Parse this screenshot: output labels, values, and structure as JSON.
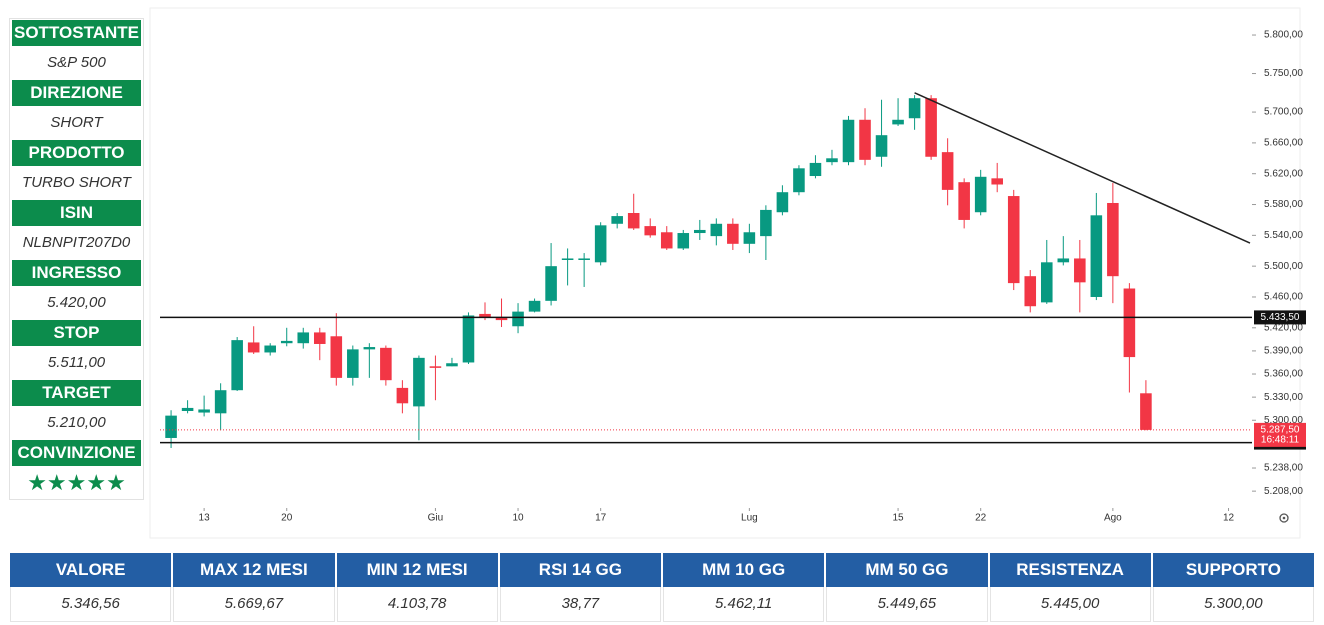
{
  "sidebar": [
    {
      "label": "SOTTOSTANTE",
      "value": "S&P 500"
    },
    {
      "label": "DIREZIONE",
      "value": "SHORT"
    },
    {
      "label": "PRODOTTO",
      "value": "TURBO SHORT"
    },
    {
      "label": "ISIN",
      "value": "NLBNPIT207D0"
    },
    {
      "label": "INGRESSO",
      "value": "5.420,00"
    },
    {
      "label": "STOP",
      "value": "5.511,00"
    },
    {
      "label": "TARGET",
      "value": "5.210,00"
    },
    {
      "label": "CONVINZIONE",
      "value": "★★★★★"
    }
  ],
  "chart_data": {
    "type": "candlestick",
    "up_color": "#089981",
    "down_color": "#f23645",
    "open": [
      5277,
      5312,
      5310,
      5309,
      5339,
      5401,
      5388,
      5400,
      5400,
      5414,
      5409,
      5355,
      5392,
      5394,
      5342,
      5318,
      5370,
      5370,
      5375,
      5438,
      5434,
      5422,
      5441,
      5455,
      5508,
      5508,
      5505,
      5555,
      5569,
      5552,
      5544,
      5523,
      5543,
      5539,
      5555,
      5529,
      5539,
      5570,
      5596,
      5617,
      5635,
      5635,
      5690,
      5642,
      5684,
      5692,
      5718,
      5648,
      5609,
      5570,
      5614,
      5591,
      5487,
      5453,
      5505,
      5510,
      5460,
      5582,
      5471,
      5335
    ],
    "high": [
      5313,
      5326,
      5332,
      5348,
      5408,
      5422,
      5400,
      5420,
      5420,
      5420,
      5439,
      5397,
      5400,
      5397,
      5352,
      5384,
      5384,
      5381,
      5440,
      5453,
      5458,
      5452,
      5458,
      5530,
      5523,
      5517,
      5557,
      5569,
      5594,
      5562,
      5552,
      5547,
      5560,
      5562,
      5562,
      5555,
      5579,
      5605,
      5631,
      5644,
      5651,
      5695,
      5705,
      5716,
      5718,
      5722,
      5722,
      5666,
      5614,
      5625,
      5634,
      5599,
      5495,
      5534,
      5539,
      5534,
      5595,
      5608,
      5478,
      5352
    ],
    "low": [
      5264,
      5309,
      5305,
      5287,
      5338,
      5386,
      5384,
      5396,
      5393,
      5378,
      5345,
      5345,
      5355,
      5345,
      5309,
      5274,
      5326,
      5370,
      5373,
      5430,
      5421,
      5413,
      5440,
      5449,
      5475,
      5473,
      5501,
      5549,
      5547,
      5537,
      5521,
      5521,
      5534,
      5527,
      5521,
      5517,
      5508,
      5566,
      5592,
      5614,
      5631,
      5631,
      5631,
      5629,
      5682,
      5677,
      5638,
      5579,
      5549,
      5566,
      5596,
      5469,
      5440,
      5451,
      5501,
      5440,
      5456,
      5452,
      5336,
      5287
    ],
    "close": [
      5306,
      5316,
      5314,
      5339,
      5404,
      5388,
      5397,
      5403,
      5414,
      5399,
      5355,
      5392,
      5395,
      5352,
      5322,
      5381,
      5368,
      5374,
      5436,
      5434,
      5430,
      5441,
      5455,
      5500,
      5510,
      5510,
      5553,
      5565,
      5549,
      5540,
      5523,
      5543,
      5547,
      5555,
      5529,
      5544,
      5573,
      5596,
      5627,
      5634,
      5640,
      5690,
      5638,
      5670,
      5690,
      5718,
      5642,
      5599,
      5560,
      5616,
      5606,
      5478,
      5448,
      5505,
      5510,
      5479,
      5566,
      5487,
      5382,
      5287.5
    ],
    "xlim": [
      -0.67,
      65.3
    ],
    "xticks": [
      {
        "value": 2,
        "label": "13"
      },
      {
        "value": 7,
        "label": "20"
      },
      {
        "value": 16,
        "label": "Giu"
      },
      {
        "value": 21,
        "label": "10"
      },
      {
        "value": 26,
        "label": "17"
      },
      {
        "value": 35,
        "label": "Lug"
      },
      {
        "value": 44,
        "label": "15"
      },
      {
        "value": 49,
        "label": "22"
      },
      {
        "value": 57,
        "label": "Ago"
      },
      {
        "value": 64,
        "label": "12"
      }
    ],
    "ylim": [
      5190,
      5826
    ],
    "yticks": [
      {
        "value": 5800,
        "label": "5.800,00"
      },
      {
        "value": 5750,
        "label": "5.750,00"
      },
      {
        "value": 5700,
        "label": "5.700,00"
      },
      {
        "value": 5660,
        "label": "5.660,00"
      },
      {
        "value": 5620,
        "label": "5.620,00"
      },
      {
        "value": 5580,
        "label": "5.580,00"
      },
      {
        "value": 5540,
        "label": "5.540,00"
      },
      {
        "value": 5500,
        "label": "5.500,00"
      },
      {
        "value": 5460,
        "label": "5.460,00"
      },
      {
        "value": 5420,
        "label": "5.420,00"
      },
      {
        "value": 5390,
        "label": "5.390,00"
      },
      {
        "value": 5360,
        "label": "5.360,00"
      },
      {
        "value": 5330,
        "label": "5.330,00"
      },
      {
        "value": 5300,
        "label": "5.300,00"
      },
      {
        "value": 5238,
        "label": "5.238,00"
      },
      {
        "value": 5208,
        "label": "5.208,00"
      }
    ],
    "levels": [
      {
        "value": 5433.5,
        "label": "5.433,50"
      },
      {
        "value": 5271,
        "label": "5.271,00"
      }
    ],
    "last_price": {
      "value": 5287.5,
      "label": "5.287,50",
      "countdown": "16:48:11"
    },
    "trendline": {
      "x": [
        45,
        65.3
      ],
      "y": [
        5725,
        5530
      ]
    }
  },
  "table": {
    "headers": [
      "VALORE",
      "MAX 12 MESI",
      "MIN 12 MESI",
      "RSI 14 GG",
      "MM 10 GG",
      "MM 50 GG",
      "RESISTENZA",
      "SUPPORTO"
    ],
    "values": [
      "5.346,56",
      "5.669,67",
      "4.103,78",
      "38,77",
      "5.462,11",
      "5.449,65",
      "5.445,00",
      "5.300,00"
    ]
  }
}
